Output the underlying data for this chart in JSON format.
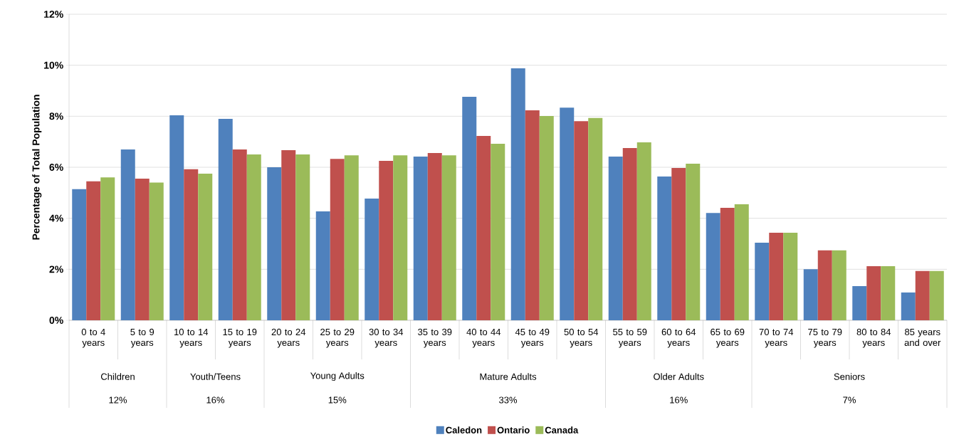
{
  "chart_data": {
    "type": "bar",
    "ylabel": "Percentage of Total Population",
    "categories": [
      "0 to 4 years",
      "5 to 9 years",
      "10 to 14 years",
      "15 to 19 years",
      "20 to 24 years",
      "25 to 29 years",
      "30 to 34 years",
      "35 to 39 years",
      "40 to 44 years",
      "45 to 49 years",
      "50 to 54 years",
      "55 to 59 years",
      "60 to 64 years",
      "65 to 69 years",
      "70 to 74 years",
      "75 to 79 years",
      "80 to 84 years",
      "85 years and over"
    ],
    "series": [
      {
        "name": "Caledon",
        "color": "#4f81bd",
        "values": [
          5.14,
          6.7,
          8.04,
          7.9,
          6.0,
          4.27,
          4.77,
          6.42,
          8.76,
          9.88,
          8.34,
          6.42,
          5.64,
          4.21,
          3.04,
          2.0,
          1.34,
          1.09
        ]
      },
      {
        "name": "Ontario",
        "color": "#c0504d",
        "values": [
          5.45,
          5.55,
          5.92,
          6.7,
          6.67,
          6.33,
          6.25,
          6.56,
          7.23,
          8.23,
          7.81,
          6.75,
          5.97,
          4.41,
          3.43,
          2.74,
          2.12,
          1.93
        ]
      },
      {
        "name": "Canada",
        "color": "#9bbb59",
        "values": [
          5.6,
          5.4,
          5.75,
          6.5,
          6.5,
          6.47,
          6.47,
          6.47,
          6.92,
          8.01,
          7.93,
          6.98,
          6.14,
          4.55,
          3.43,
          2.74,
          2.12,
          1.93
        ]
      }
    ],
    "ylim": [
      0,
      12
    ],
    "yticks": [
      {
        "value": 0,
        "label": "0%"
      },
      {
        "value": 2,
        "label": "2%"
      },
      {
        "value": 4,
        "label": "4%"
      },
      {
        "value": 6,
        "label": "6%"
      },
      {
        "value": 8,
        "label": "8%"
      },
      {
        "value": 10,
        "label": "10%"
      },
      {
        "value": 12,
        "label": "12%"
      }
    ],
    "grid": "y",
    "legend": "bottom",
    "annotations": [
      "Children",
      "12%",
      "Youth/Teens",
      "16%",
      "Young Adults",
      "15%",
      "Mature Adults",
      "33%",
      "Older Adults",
      "16%",
      "Seniors",
      "7%"
    ]
  }
}
